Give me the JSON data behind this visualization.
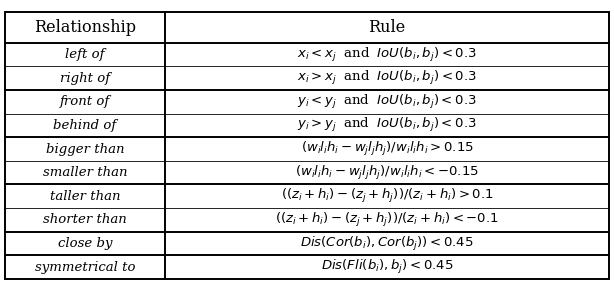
{
  "title_row": [
    "Relationship",
    "Rule"
  ],
  "groups": [
    {
      "rel_lines": [
        "left of",
        "right of"
      ],
      "rule_lines": [
        "$x_i < x_j$  and  $IoU(b_i, b_j) < 0.3$",
        "$x_i > x_j$  and  $IoU(b_i, b_j) < 0.3$"
      ]
    },
    {
      "rel_lines": [
        "front of",
        "behind of"
      ],
      "rule_lines": [
        "$y_i < y_j$  and  $IoU(b_i, b_j) < 0.3$",
        "$y_i > y_j$  and  $IoU(b_i, b_j) < 0.3$"
      ]
    },
    {
      "rel_lines": [
        "bigger than",
        "smaller than"
      ],
      "rule_lines": [
        "$(w_i l_i h_i - w_j l_j h_j)/w_i l_i h_i > 0.15$",
        "$(w_i l_i h_i - w_j l_j h_j)/w_i l_i h_i < -0.15$"
      ]
    },
    {
      "rel_lines": [
        "taller than",
        "shorter than"
      ],
      "rule_lines": [
        "$((z_i + h_i) - (z_j + h_j))/(z_i + h_i) > 0.1$",
        "$((z_i + h_i) - (z_j + h_j))/(z_i + h_i) < -0.1$"
      ]
    },
    {
      "rel_lines": [
        "close by"
      ],
      "rule_lines": [
        "$Dis(Cor(b_i), Cor(b_j)) < 0.45$"
      ]
    },
    {
      "rel_lines": [
        "symmetrical to"
      ],
      "rule_lines": [
        "$Dis(Fli(b_i), b_j) < 0.45$"
      ]
    }
  ],
  "col_split": 0.265,
  "fig_width": 6.14,
  "fig_height": 2.84,
  "dpi": 100,
  "bg_color": "#ffffff",
  "border_color": "#000000",
  "header_fontsize": 11.5,
  "cell_fontsize": 9.5,
  "lw_thick": 1.4,
  "lw_thin": 0.6
}
